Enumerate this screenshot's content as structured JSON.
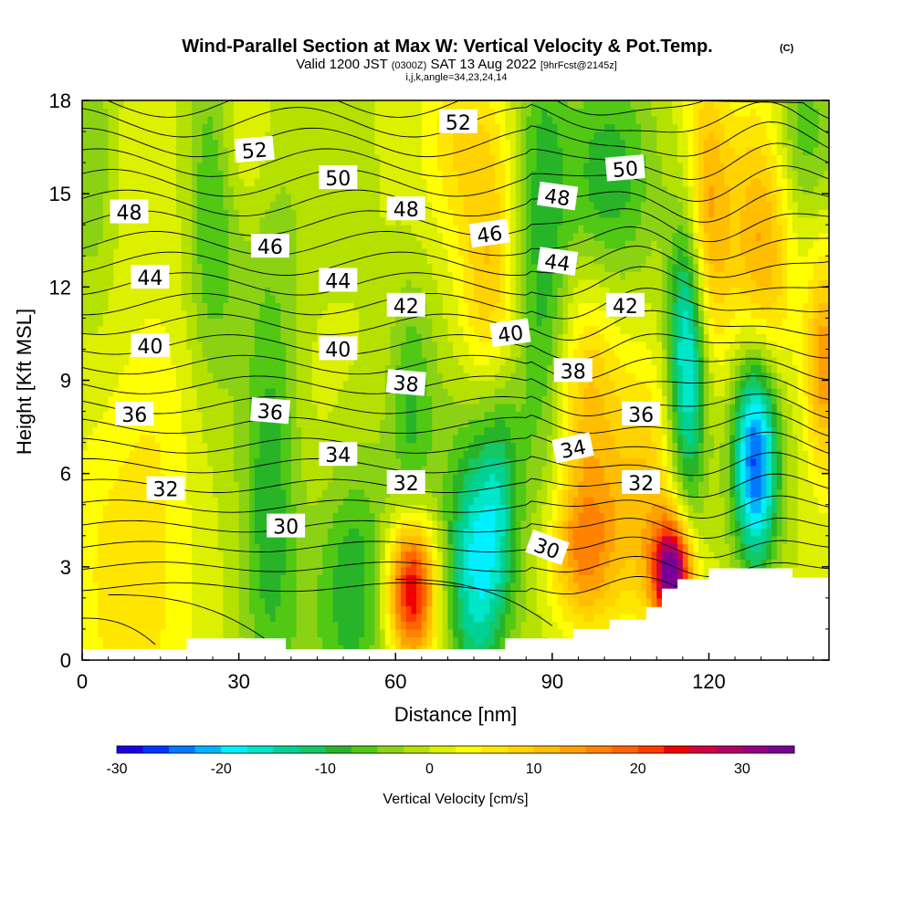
{
  "title": {
    "main": "Wind-Parallel Section at Max W: Vertical Velocity & Pot.Temp.",
    "copyright_mark": "(C)",
    "valid_prefix": "Valid 1200 JST",
    "valid_utc": "(0300Z)",
    "valid_date": "SAT 13 Aug 2022",
    "forecast": "[9hrFcst@2145z]",
    "indices": "i,j,k,angle=34,23,24,14"
  },
  "colors": {
    "terrain": "#ffffff",
    "contour_line": "#000000",
    "scale": [
      "#1a00e6",
      "#0038ff",
      "#0078ff",
      "#00b4ff",
      "#00f0ff",
      "#00e6c8",
      "#00d296",
      "#14c864",
      "#28b428",
      "#50c814",
      "#8cd214",
      "#b4e100",
      "#dcf000",
      "#ffff00",
      "#ffe600",
      "#ffd200",
      "#ffbe00",
      "#ffa000",
      "#ff8200",
      "#ff6400",
      "#ff3c00",
      "#f00000",
      "#d2003c",
      "#b40064",
      "#960082",
      "#780096"
    ]
  },
  "chart_data": {
    "type": "heatmap",
    "xlabel": "Distance [nm]",
    "ylabel": "Height [Kft MSL]",
    "xlim": [
      0,
      143
    ],
    "ylim": [
      0,
      18
    ],
    "xticks": [
      "0",
      "30",
      "60",
      "90",
      "120"
    ],
    "xtick_values": [
      0,
      30,
      60,
      90,
      120
    ],
    "yticks": [
      "0",
      "3",
      "6",
      "9",
      "12",
      "15",
      "18"
    ],
    "ytick_values": [
      0,
      3,
      6,
      9,
      12,
      15,
      18
    ],
    "colorbar": {
      "title": "Vertical Velocity [cm/s]",
      "min": -30,
      "max": 35,
      "step": 2.5,
      "tick_labels": [
        "-30",
        "-20",
        "-10",
        "0",
        "10",
        "20",
        "30"
      ],
      "tick_values": [
        -30,
        -20,
        -10,
        0,
        10,
        20,
        30
      ]
    },
    "terrain_top": [
      [
        0,
        0.35
      ],
      [
        20,
        0.35
      ],
      [
        20,
        0.7
      ],
      [
        39,
        0.7
      ],
      [
        39,
        0.35
      ],
      [
        81,
        0.35
      ],
      [
        81,
        0.7
      ],
      [
        94,
        0.7
      ],
      [
        94,
        1.0
      ],
      [
        101,
        1.0
      ],
      [
        101,
        1.3
      ],
      [
        108,
        1.3
      ],
      [
        108,
        1.7
      ],
      [
        111,
        1.7
      ],
      [
        111,
        2.3
      ],
      [
        114,
        2.3
      ],
      [
        114,
        2.6
      ],
      [
        120,
        2.6
      ],
      [
        120,
        2.95
      ],
      [
        136,
        2.95
      ],
      [
        136,
        2.65
      ],
      [
        143,
        2.65
      ]
    ],
    "w_features": [
      {
        "x": 63,
        "y": 2.3,
        "sx": 3.2,
        "sy": 1.6,
        "w": 26
      },
      {
        "x": 113,
        "y": 2.8,
        "sx": 2.6,
        "sy": 1.2,
        "w": 33
      },
      {
        "x": 96,
        "y": 3.3,
        "sx": 5,
        "sy": 1.8,
        "w": 14
      },
      {
        "x": 108,
        "y": 5,
        "sx": 5,
        "sy": 3,
        "w": 10
      },
      {
        "x": 75,
        "y": 2.8,
        "sx": 4,
        "sy": 3,
        "w": -17
      },
      {
        "x": 80,
        "y": 5.3,
        "sx": 3,
        "sy": 3,
        "w": -10
      },
      {
        "x": 116,
        "y": 10.2,
        "sx": 2.6,
        "sy": 3.6,
        "w": -23
      },
      {
        "x": 129,
        "y": 6.6,
        "sx": 3,
        "sy": 2.6,
        "w": -27
      },
      {
        "x": 119,
        "y": 14,
        "sx": 3.5,
        "sy": 3.5,
        "w": 15
      },
      {
        "x": 130,
        "y": 12.5,
        "sx": 4,
        "sy": 3.5,
        "w": 13
      },
      {
        "x": 142,
        "y": 9.5,
        "sx": 2.5,
        "sy": 2.5,
        "w": 14
      },
      {
        "x": 88,
        "y": 13,
        "sx": 3.5,
        "sy": 6,
        "w": -9
      },
      {
        "x": 101,
        "y": 15.5,
        "sx": 6,
        "sy": 2.5,
        "w": -8
      },
      {
        "x": 78,
        "y": 12,
        "sx": 4,
        "sy": 3,
        "w": 10
      },
      {
        "x": 73,
        "y": 17,
        "sx": 5,
        "sy": 2,
        "w": 6
      },
      {
        "x": 36,
        "y": 6,
        "sx": 4,
        "sy": 5,
        "w": -10
      },
      {
        "x": 25,
        "y": 15,
        "sx": 3.5,
        "sy": 4,
        "w": -9
      },
      {
        "x": 63,
        "y": 8,
        "sx": 3,
        "sy": 3,
        "w": -7
      },
      {
        "x": 52,
        "y": 2.5,
        "sx": 5,
        "sy": 3,
        "w": -9
      },
      {
        "x": 8,
        "y": 3,
        "sx": 8,
        "sy": 4,
        "w": 6
      },
      {
        "x": 15,
        "y": 8,
        "sx": 6,
        "sy": 3,
        "w": 4
      },
      {
        "x": 97,
        "y": 8,
        "sx": 4,
        "sy": 3,
        "w": 9
      },
      {
        "x": 2,
        "y": 16,
        "sx": 3,
        "sy": 3,
        "w": -5
      },
      {
        "x": 30,
        "y": 17,
        "sx": 4,
        "sy": 2,
        "w": 5
      },
      {
        "x": 138,
        "y": 17,
        "sx": 4,
        "sy": 2,
        "w": -7
      }
    ],
    "theta_contours": {
      "start": 29,
      "end": 53,
      "step": 1,
      "labels": [
        {
          "text": "30",
          "x": 39,
          "y": 4.3,
          "angle": 0
        },
        {
          "text": "30",
          "x": 89,
          "y": 3.6,
          "angle": 20
        },
        {
          "text": "32",
          "x": 16,
          "y": 5.5,
          "angle": 0
        },
        {
          "text": "32",
          "x": 62,
          "y": 5.7,
          "angle": 0
        },
        {
          "text": "32",
          "x": 107,
          "y": 5.7,
          "angle": 0
        },
        {
          "text": "34",
          "x": 49,
          "y": 6.6,
          "angle": 0
        },
        {
          "text": "34",
          "x": 94,
          "y": 6.8,
          "angle": -12
        },
        {
          "text": "36",
          "x": 10,
          "y": 7.9,
          "angle": 0
        },
        {
          "text": "36",
          "x": 36,
          "y": 8,
          "angle": 5
        },
        {
          "text": "36",
          "x": 107,
          "y": 7.9,
          "angle": 0
        },
        {
          "text": "38",
          "x": 62,
          "y": 8.9,
          "angle": 5
        },
        {
          "text": "38",
          "x": 94,
          "y": 9.3,
          "angle": 0
        },
        {
          "text": "40",
          "x": 13,
          "y": 10.1,
          "angle": 0
        },
        {
          "text": "40",
          "x": 49,
          "y": 10,
          "angle": 0
        },
        {
          "text": "40",
          "x": 82,
          "y": 10.5,
          "angle": -8
        },
        {
          "text": "42",
          "x": 62,
          "y": 11.4,
          "angle": 0
        },
        {
          "text": "42",
          "x": 104,
          "y": 11.4,
          "angle": 0
        },
        {
          "text": "44",
          "x": 13,
          "y": 12.3,
          "angle": 0
        },
        {
          "text": "44",
          "x": 49,
          "y": 12.2,
          "angle": 0
        },
        {
          "text": "44",
          "x": 91,
          "y": 12.8,
          "angle": 8
        },
        {
          "text": "46",
          "x": 36,
          "y": 13.3,
          "angle": 0
        },
        {
          "text": "46",
          "x": 78,
          "y": 13.7,
          "angle": -8
        },
        {
          "text": "48",
          "x": 9,
          "y": 14.4,
          "angle": 0
        },
        {
          "text": "48",
          "x": 62,
          "y": 14.5,
          "angle": 0
        },
        {
          "text": "48",
          "x": 91,
          "y": 14.9,
          "angle": 8
        },
        {
          "text": "50",
          "x": 49,
          "y": 15.5,
          "angle": 0
        },
        {
          "text": "50",
          "x": 104,
          "y": 15.8,
          "angle": -5
        },
        {
          "text": "52",
          "x": 33,
          "y": 16.4,
          "angle": -5
        },
        {
          "text": "52",
          "x": 72,
          "y": 17.3,
          "angle": 0
        }
      ]
    }
  }
}
